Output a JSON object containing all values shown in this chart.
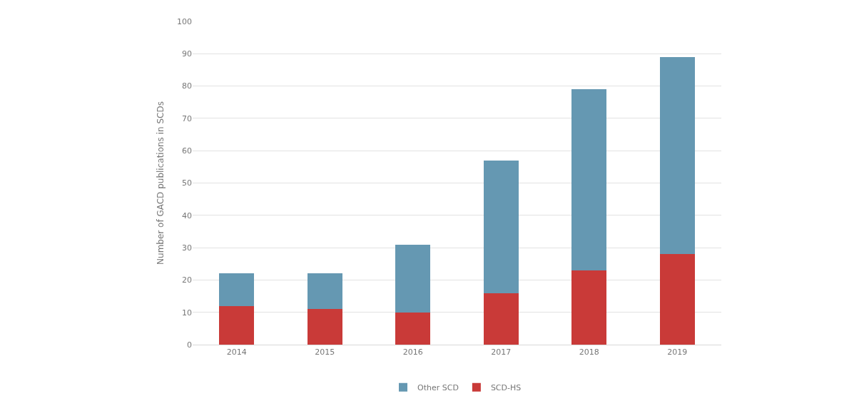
{
  "chart_data": {
    "type": "bar",
    "stacked": true,
    "ylabel": "Number of GACD publications in SCDs",
    "categories": [
      "2014",
      "2015",
      "2016",
      "2017",
      "2018",
      "2019"
    ],
    "series": [
      {
        "name": "SCD-HS",
        "color": "#c93a38",
        "values": [
          12,
          11,
          10,
          16,
          23,
          28
        ]
      },
      {
        "name": "Other SCD",
        "color": "#6598b2",
        "values": [
          10,
          11,
          21,
          41,
          56,
          61
        ]
      }
    ],
    "ylim": [
      0,
      100
    ],
    "yticks": [
      0,
      10,
      20,
      30,
      40,
      50,
      60,
      70,
      80,
      90,
      100
    ],
    "grid": "y",
    "legend": "bottom"
  }
}
